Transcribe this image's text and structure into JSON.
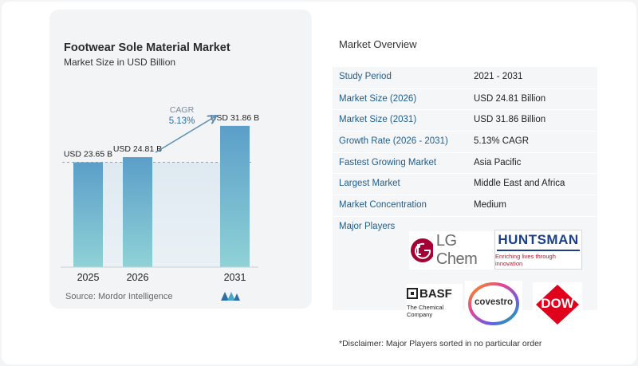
{
  "chart_data": {
    "type": "bar",
    "title": "Footwear Sole Material Market",
    "subtitle": "Market Size in USD Billion",
    "categories": [
      "2025",
      "2026",
      "2031"
    ],
    "values": [
      23.65,
      24.81,
      31.86
    ],
    "value_labels": [
      "USD 23.65 B",
      "USD 24.81 B",
      "USD 31.86 B"
    ],
    "cagr_label": "CAGR",
    "cagr_value": "5.13%",
    "bar_color": "#5b9ec9",
    "bar_bottom_color": "#8fd2d6",
    "reference_line": 23.65,
    "grid": false,
    "ylim": [
      0,
      34
    ]
  },
  "source": {
    "text": "Source:  Mordor Intelligence"
  },
  "overview": {
    "title": "Market Overview",
    "rows": [
      {
        "key": "Study Period",
        "value": "2021 - 2031"
      },
      {
        "key": "Market Size (2026)",
        "value": "USD 24.81 Billion"
      },
      {
        "key": "Market Size (2031)",
        "value": "USD 31.86 Billion"
      },
      {
        "key": "Growth Rate (2026 - 2031)",
        "value": "5.13% CAGR"
      },
      {
        "key": "Fastest Growing Market",
        "value": "Asia Pacific"
      },
      {
        "key": "Largest Market",
        "value": "Middle East and Africa"
      },
      {
        "key": "Market Concentration",
        "value": "Medium"
      }
    ],
    "players_label": "Major Players",
    "players": {
      "lgchem": "LG Chem",
      "huntsman": "HUNTSMAN",
      "huntsman_tagline": "Enriching lives through innovation",
      "basf": "BASF",
      "basf_tagline": "The Chemical Company",
      "covestro": "covestro",
      "dow": "DOW"
    }
  },
  "disclaimer": "*Disclaimer: Major Players sorted in no particular order",
  "colors": {
    "key_text": "#1f5d8f",
    "lg_red": "#a50034",
    "huntsman_blue": "#1b3f8b",
    "dow_red": "#e0001b"
  }
}
